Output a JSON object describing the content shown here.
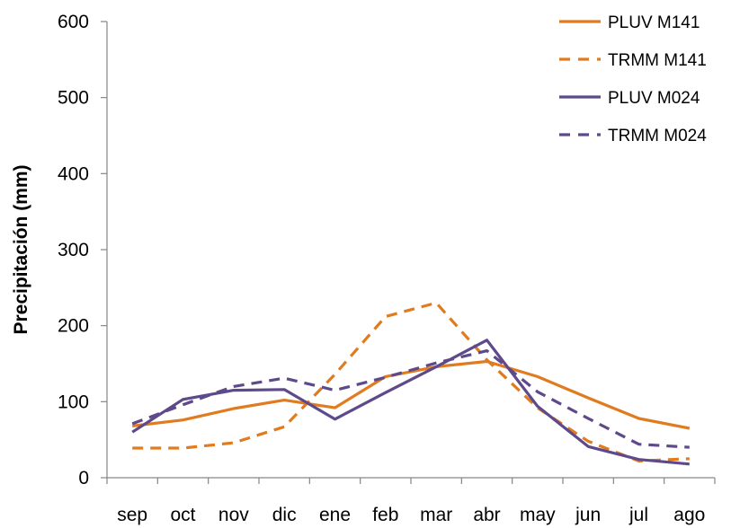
{
  "chart_data": {
    "type": "line",
    "title": "",
    "xlabel": "",
    "ylabel": "Precipitación (mm)",
    "ylim": [
      0,
      600
    ],
    "yticks": [
      "0",
      "100",
      "200",
      "300",
      "400",
      "500",
      "600"
    ],
    "categories": [
      "sep",
      "oct",
      "nov",
      "dic",
      "ene",
      "feb",
      "mar",
      "abr",
      "may",
      "jun",
      "jul",
      "ago"
    ],
    "grid": false,
    "legend_position": "top-right",
    "series": [
      {
        "name": "PLUV M141",
        "color": "#E07B1F",
        "dash": "solid",
        "values": [
          68,
          76,
          91,
          102,
          92,
          133,
          146,
          153,
          133,
          105,
          78,
          65
        ]
      },
      {
        "name": "TRMM M141",
        "color": "#E07B1F",
        "dash": "dashed",
        "values": [
          39,
          39,
          46,
          67,
          136,
          212,
          230,
          155,
          92,
          48,
          22,
          25
        ]
      },
      {
        "name": "PLUV M024",
        "color": "#5E4A8B",
        "dash": "solid",
        "values": [
          60,
          103,
          115,
          116,
          77,
          112,
          146,
          181,
          94,
          41,
          24,
          18
        ]
      },
      {
        "name": "TRMM M024",
        "color": "#5E4A8B",
        "dash": "dashed",
        "values": [
          71,
          96,
          120,
          131,
          115,
          132,
          151,
          167,
          113,
          78,
          44,
          40
        ]
      }
    ]
  }
}
